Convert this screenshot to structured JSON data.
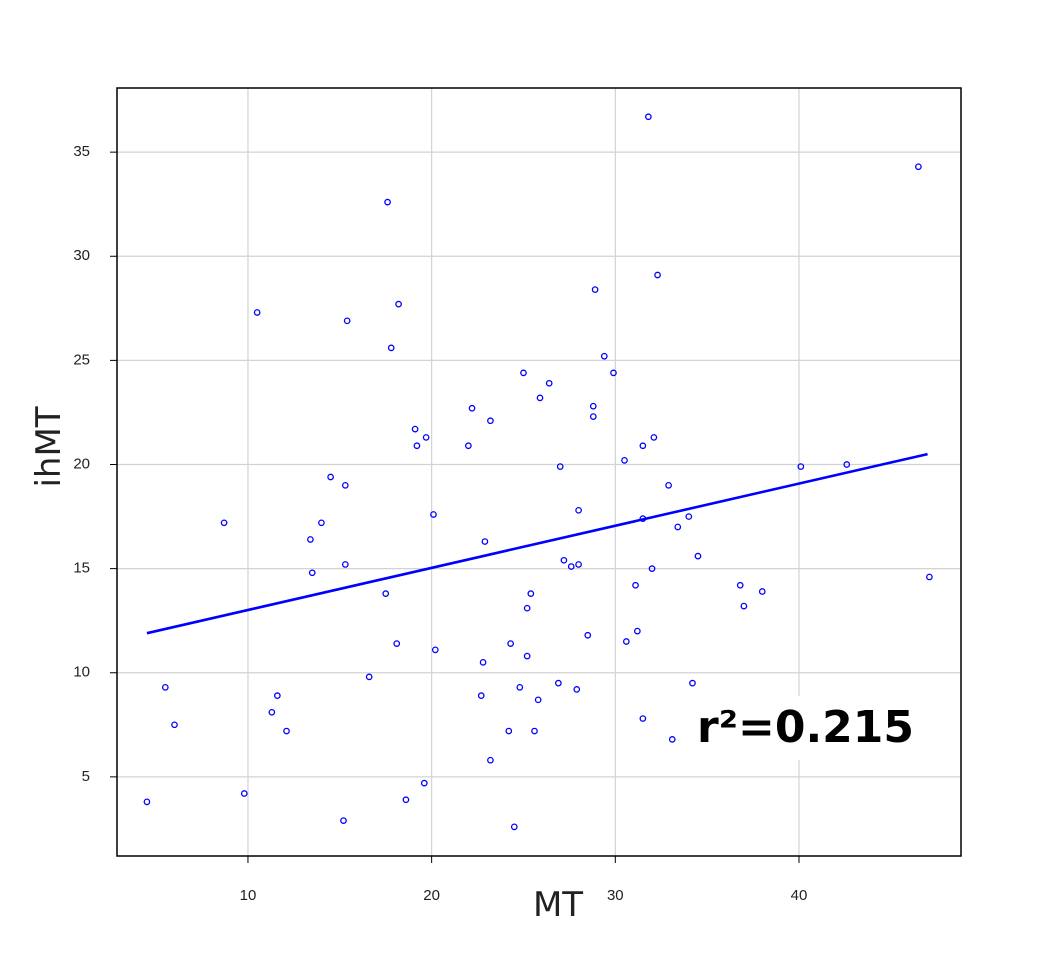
{
  "chart_data": {
    "type": "scatter",
    "xlabel": "MT",
    "ylabel": "ihMT",
    "annotation": "r²=0.215",
    "color": "#0000ff",
    "grid": true,
    "xlim": [
      2.87,
      48.82
    ],
    "xticks": [
      10,
      20,
      30,
      40
    ],
    "ylim": [
      1.2,
      38.08
    ],
    "yticks": [
      5,
      10,
      15,
      20,
      25,
      30,
      35
    ],
    "x": [
      4.5,
      5.5,
      6.0,
      8.7,
      9.8,
      10.5,
      11.3,
      11.6,
      12.1,
      13.4,
      13.5,
      14.0,
      14.5,
      15.2,
      15.3,
      15.3,
      15.4,
      16.6,
      17.5,
      17.6,
      17.8,
      18.1,
      18.2,
      18.6,
      19.1,
      19.2,
      19.6,
      19.7,
      20.1,
      20.2,
      22.0,
      22.2,
      22.7,
      22.8,
      22.9,
      23.2,
      23.2,
      24.2,
      24.3,
      24.5,
      24.8,
      25.0,
      25.2,
      25.2,
      25.4,
      25.6,
      25.8,
      25.9,
      26.4,
      26.9,
      27.0,
      27.2,
      27.6,
      27.9,
      28.0,
      28.0,
      28.5,
      28.8,
      28.8,
      28.9,
      29.4,
      29.9,
      30.5,
      30.6,
      31.1,
      31.2,
      31.5,
      31.5,
      31.5,
      32.0,
      32.1,
      32.3,
      32.9,
      33.1,
      33.4,
      34.0,
      34.2,
      34.5,
      36.8,
      37.0,
      38.0,
      40.1,
      42.6,
      46.5,
      47.1,
      31.8
    ],
    "y": [
      3.8,
      9.3,
      7.5,
      17.2,
      4.2,
      27.3,
      8.1,
      8.9,
      7.2,
      16.4,
      14.8,
      17.2,
      19.4,
      2.9,
      19.0,
      15.2,
      26.9,
      9.8,
      13.8,
      32.6,
      25.6,
      11.4,
      27.7,
      3.9,
      21.7,
      20.9,
      4.7,
      21.3,
      17.6,
      11.1,
      20.9,
      22.7,
      8.9,
      10.5,
      16.3,
      22.1,
      5.8,
      7.2,
      11.4,
      2.6,
      9.3,
      24.4,
      10.8,
      13.1,
      13.8,
      7.2,
      8.7,
      23.2,
      23.9,
      9.5,
      19.9,
      15.4,
      15.1,
      9.2,
      15.2,
      17.8,
      11.8,
      22.3,
      22.8,
      28.4,
      25.2,
      24.4,
      20.2,
      11.5,
      14.2,
      12.0,
      20.9,
      7.8,
      17.4,
      15.0,
      21.3,
      29.1,
      19.0,
      6.8,
      17.0,
      17.5,
      9.5,
      15.6,
      14.2,
      13.2,
      13.9,
      19.9,
      20.0,
      34.3,
      14.6,
      36.7
    ],
    "regression_line": {
      "x": [
        4.5,
        47.0
      ],
      "y": [
        11.9,
        20.5
      ]
    }
  }
}
